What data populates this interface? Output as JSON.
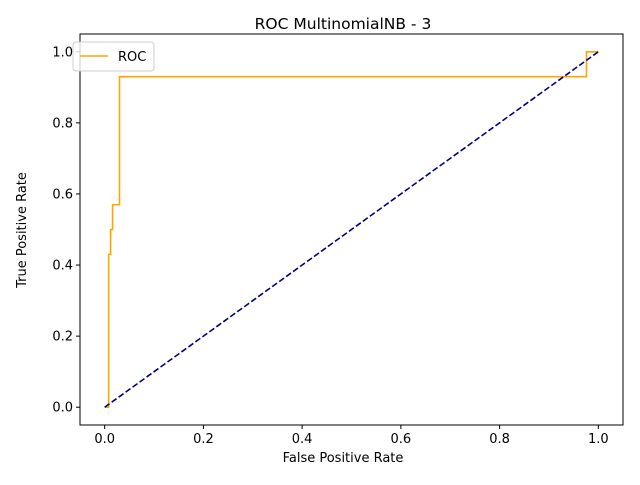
{
  "chart_data": {
    "type": "line",
    "title": "ROC MultinomialNB - 3",
    "xlabel": "False Positive Rate",
    "ylabel": "True Positive Rate",
    "xlim": [
      -0.05,
      1.05
    ],
    "ylim": [
      -0.05,
      1.05
    ],
    "xticks": [
      0.0,
      0.2,
      0.4,
      0.6,
      0.8,
      1.0
    ],
    "xtick_labels": [
      "0.0",
      "0.2",
      "0.4",
      "0.6",
      "0.8",
      "1.0"
    ],
    "yticks": [
      0.0,
      0.2,
      0.4,
      0.6,
      0.8,
      1.0
    ],
    "ytick_labels": [
      "0.0",
      "0.2",
      "0.4",
      "0.6",
      "0.8",
      "1.0"
    ],
    "grid": false,
    "legend_position": "top-left",
    "series": [
      {
        "name": "ROC",
        "color": "#ffa500",
        "style": "solid",
        "step": true,
        "x": [
          0.0,
          0.008,
          0.008,
          0.008,
          0.008,
          0.012,
          0.012,
          0.016,
          0.016,
          0.018,
          0.018,
          0.03,
          0.03,
          0.976,
          0.976,
          1.0
        ],
        "y": [
          0.0,
          0.0,
          0.36,
          0.36,
          0.43,
          0.43,
          0.5,
          0.5,
          0.57,
          0.57,
          0.57,
          0.57,
          0.93,
          0.93,
          1.0,
          1.0
        ]
      },
      {
        "name": "",
        "color": "#000080",
        "style": "dashed",
        "step": false,
        "x": [
          0.0,
          1.0
        ],
        "y": [
          0.0,
          1.0
        ]
      }
    ]
  },
  "legend": {
    "entries": [
      {
        "label": "ROC",
        "color": "#ffa500"
      }
    ]
  }
}
